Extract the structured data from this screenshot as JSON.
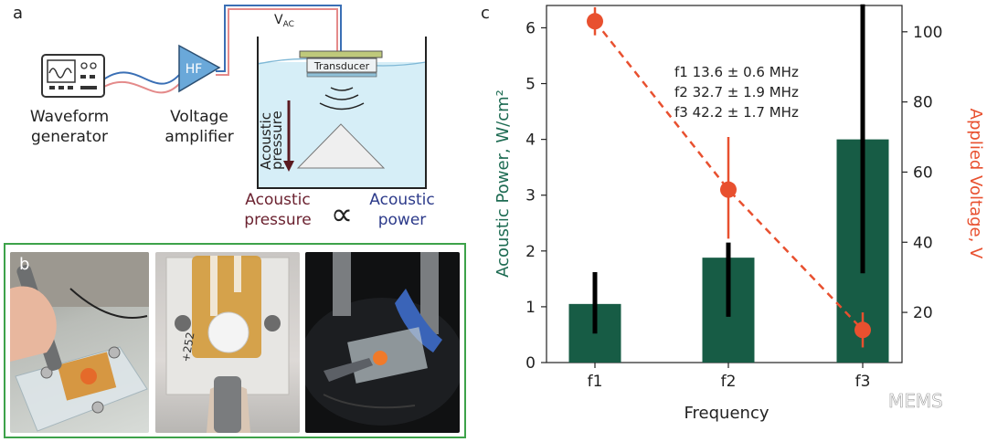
{
  "panel_a": {
    "label": "a",
    "vac_main": "V",
    "vac_sub": "AC",
    "hf_label": "HF",
    "transducer_label": "Transducer",
    "waveform_line1": "Waveform",
    "waveform_line2": "generator",
    "voltage_line1": "Voltage",
    "voltage_line2": "amplifier",
    "inner_pressure_line1": "Acoustic",
    "inner_pressure_line2": "pressure",
    "relation_left_1": "Acoustic",
    "relation_left_2": "pressure",
    "relation_symbol": "∝",
    "relation_right_1": "Acoustic",
    "relation_right_2": "power"
  },
  "panel_b": {
    "label": "b",
    "photo_text": "+252"
  },
  "panel_c": {
    "label": "c"
  },
  "watermark": "MEMS",
  "colors": {
    "bar": "#175c45",
    "line": "#e8502f",
    "left_axis": "#1d6b52",
    "right_axis": "#e8502f",
    "green_frame": "#3da24a",
    "water": "#d6eef7",
    "amp": "#6aa8d9"
  },
  "chart_data": {
    "type": "bar",
    "xlabel": "Frequency",
    "ylabel": "Acoustic Power, W/cm²",
    "y2label": "Applied Voltage, V",
    "categories": [
      "f1",
      "f2",
      "f3"
    ],
    "ylim": [
      0,
      6.4
    ],
    "yticks": [
      0,
      1,
      2,
      3,
      4,
      5,
      6
    ],
    "y2lim": [
      5.7,
      107.5
    ],
    "y2ticks": [
      20,
      40,
      60,
      80,
      100
    ],
    "series": [
      {
        "kind": "bar",
        "values": [
          1.05,
          1.88,
          4.0
        ],
        "err_low": [
          0.52,
          0.82,
          1.6
        ],
        "err_high": [
          1.62,
          2.15,
          6.42
        ]
      },
      {
        "kind": "line",
        "axis": "right",
        "values": [
          103,
          55,
          15
        ],
        "err_low": [
          99,
          41,
          10
        ],
        "err_high": [
          107,
          70,
          20
        ]
      }
    ],
    "annotations": [
      "f1 13.6 ± 0.6 MHz",
      "f2 32.7 ± 1.9 MHz",
      "f3 42.2 ± 1.7 MHz"
    ]
  }
}
